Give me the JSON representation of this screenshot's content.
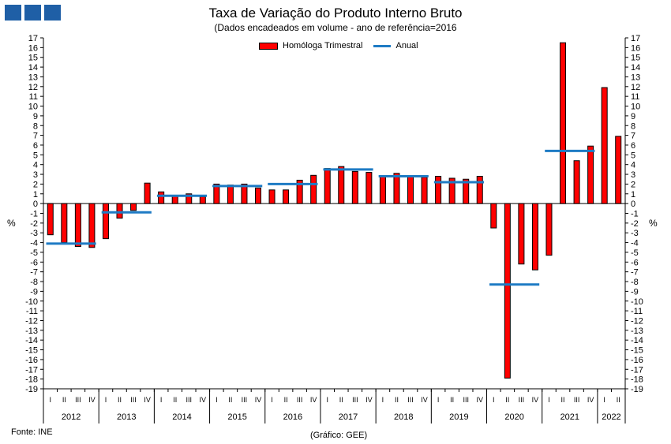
{
  "chart_data": {
    "type": "bar",
    "title": "Taxa de Variação do Produto Interno Bruto",
    "subtitle": "(Dados encadeados em volume  - ano de referência=2016",
    "ylabel": "%",
    "ylim": [
      -19,
      17
    ],
    "grid": false,
    "legend": "top-center",
    "series": [
      {
        "name": "Homóloga Trimestral",
        "color": "#ff0000",
        "type": "bar",
        "values": [
          -3.2,
          -4.0,
          -4.4,
          -4.5,
          -3.6,
          -1.5,
          -0.7,
          2.1,
          1.2,
          0.8,
          1.0,
          0.7,
          2.0,
          1.9,
          2.0,
          1.6,
          1.4,
          1.4,
          2.4,
          2.9,
          3.6,
          3.8,
          3.3,
          3.2,
          2.8,
          3.1,
          2.8,
          2.7,
          2.8,
          2.6,
          2.5,
          2.8,
          -2.5,
          -17.9,
          -6.2,
          -6.8,
          -5.3,
          16.5,
          4.4,
          5.9,
          11.9,
          6.9
        ]
      },
      {
        "name": "Anual",
        "color": "#1e7bc4",
        "type": "line",
        "years": [
          "2012",
          "2013",
          "2014",
          "2015",
          "2016",
          "2017",
          "2018",
          "2019",
          "2020",
          "2021"
        ],
        "values": [
          -4.1,
          -0.9,
          0.8,
          1.8,
          2.0,
          3.5,
          2.8,
          2.2,
          -8.3,
          5.4
        ]
      }
    ],
    "quarter_labels": [
      "I",
      "II",
      "III",
      "IV"
    ],
    "years": [
      "2012",
      "2013",
      "2014",
      "2015",
      "2016",
      "2017",
      "2018",
      "2019",
      "2020",
      "2021",
      "2022"
    ],
    "yticks": [
      17,
      16,
      15,
      14,
      13,
      12,
      11,
      10,
      9,
      8,
      7,
      6,
      5,
      4,
      3,
      2,
      1,
      0,
      -1,
      -2,
      -3,
      -4,
      -5,
      -6,
      -7,
      -8,
      -9,
      -10,
      -11,
      -12,
      -13,
      -14,
      -15,
      -16,
      -17,
      -18,
      -19
    ]
  },
  "footer": {
    "source": "Fonte: INE",
    "credit": "(Gráfico: GEE)"
  }
}
